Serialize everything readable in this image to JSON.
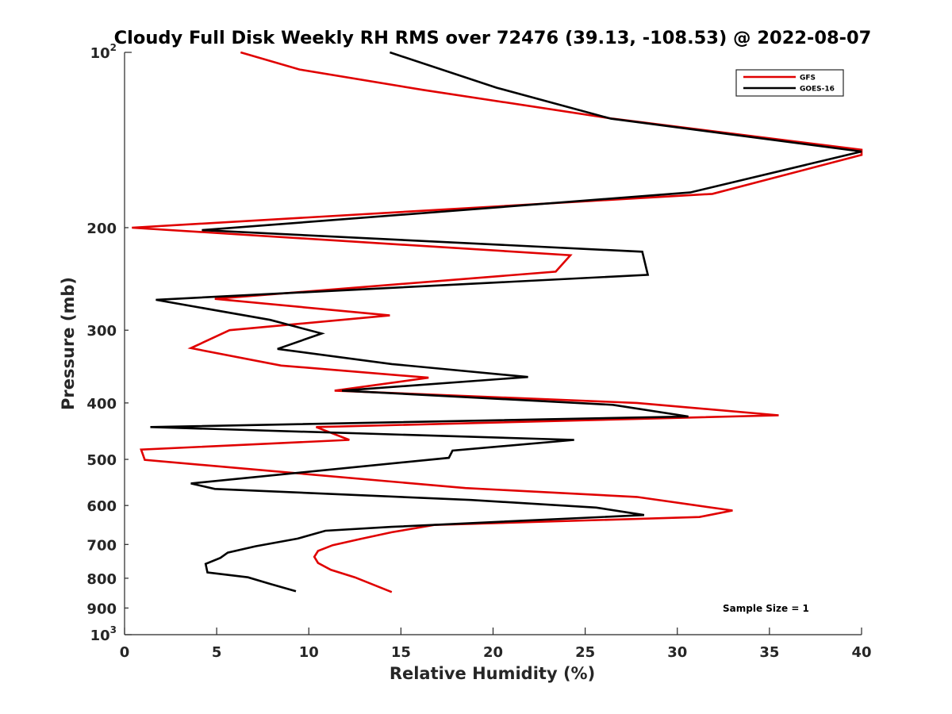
{
  "chart_data": {
    "type": "line",
    "title": "Cloudy Full Disk Weekly RH RMS over 72476 (39.13, -108.53) @ 2022-08-07",
    "xlabel": "Relative Humidity (%)",
    "ylabel": "Pressure (mb)",
    "xlim": [
      0,
      40
    ],
    "ylim": [
      100,
      1000
    ],
    "yscale": "log",
    "y_reversed": true,
    "grid": false,
    "legend_position": "top-right",
    "x_ticks": [
      "0",
      "5",
      "10",
      "15",
      "20",
      "25",
      "30",
      "35",
      "40"
    ],
    "y_ticks": [
      {
        "value": 100,
        "base": "10",
        "exp": "2"
      },
      {
        "value": 200,
        "label": "200"
      },
      {
        "value": 300,
        "label": "300"
      },
      {
        "value": 400,
        "label": "400"
      },
      {
        "value": 500,
        "label": "500"
      },
      {
        "value": 600,
        "label": "600"
      },
      {
        "value": 700,
        "label": "700"
      },
      {
        "value": 800,
        "label": "800"
      },
      {
        "value": 900,
        "label": "900"
      },
      {
        "value": 1000,
        "base": "10",
        "exp": "3"
      }
    ],
    "annotation": "Sample Size = 1",
    "series": [
      {
        "name": "GFS",
        "color": "#e00000",
        "points": [
          [
            6.3,
            100
          ],
          [
            9.5,
            107
          ],
          [
            16.2,
            116
          ],
          [
            26.5,
            130
          ],
          [
            40.0,
            147
          ],
          [
            40.0,
            150
          ],
          [
            31.9,
            175
          ],
          [
            0.4,
            200
          ],
          [
            24.2,
            223
          ],
          [
            23.4,
            238
          ],
          [
            4.9,
            265
          ],
          [
            14.4,
            283
          ],
          [
            5.7,
            300
          ],
          [
            3.6,
            322
          ],
          [
            8.5,
            345
          ],
          [
            16.5,
            362
          ],
          [
            11.4,
            381
          ],
          [
            27.8,
            400
          ],
          [
            35.5,
            420
          ],
          [
            10.4,
            440
          ],
          [
            12.2,
            463
          ],
          [
            0.9,
            481
          ],
          [
            1.1,
            501
          ],
          [
            18.5,
            560
          ],
          [
            27.8,
            580
          ],
          [
            33.0,
            612
          ],
          [
            31.2,
            628
          ],
          [
            16.8,
            648
          ],
          [
            14.5,
            667
          ],
          [
            12.8,
            685
          ],
          [
            11.3,
            702
          ],
          [
            10.5,
            718
          ],
          [
            10.3,
            735
          ],
          [
            10.5,
            753
          ],
          [
            11.2,
            774
          ],
          [
            12.5,
            797
          ],
          [
            14.5,
            845
          ]
        ]
      },
      {
        "name": "GOES-16",
        "color": "#000000",
        "points": [
          [
            14.4,
            100
          ],
          [
            20.2,
            115
          ],
          [
            26.4,
            130
          ],
          [
            40.0,
            148
          ],
          [
            30.7,
            174
          ],
          [
            4.2,
            202
          ],
          [
            28.1,
            220
          ],
          [
            28.4,
            241
          ],
          [
            1.7,
            266
          ],
          [
            7.9,
            288
          ],
          [
            10.7,
            304
          ],
          [
            8.3,
            323
          ],
          [
            14.5,
            343
          ],
          [
            21.9,
            361
          ],
          [
            11.8,
            381
          ],
          [
            26.5,
            403
          ],
          [
            30.6,
            422
          ],
          [
            1.4,
            440
          ],
          [
            24.4,
            463
          ],
          [
            17.8,
            483
          ],
          [
            17.6,
            497
          ],
          [
            3.6,
            550
          ],
          [
            4.9,
            562
          ],
          [
            18.8,
            587
          ],
          [
            25.6,
            605
          ],
          [
            28.2,
            623
          ],
          [
            14.5,
            653
          ],
          [
            10.9,
            663
          ],
          [
            9.4,
            684
          ],
          [
            7.1,
            705
          ],
          [
            5.6,
            723
          ],
          [
            5.2,
            738
          ],
          [
            4.4,
            756
          ],
          [
            4.5,
            782
          ],
          [
            6.7,
            797
          ],
          [
            7.9,
            818
          ],
          [
            9.3,
            842
          ]
        ]
      }
    ]
  }
}
